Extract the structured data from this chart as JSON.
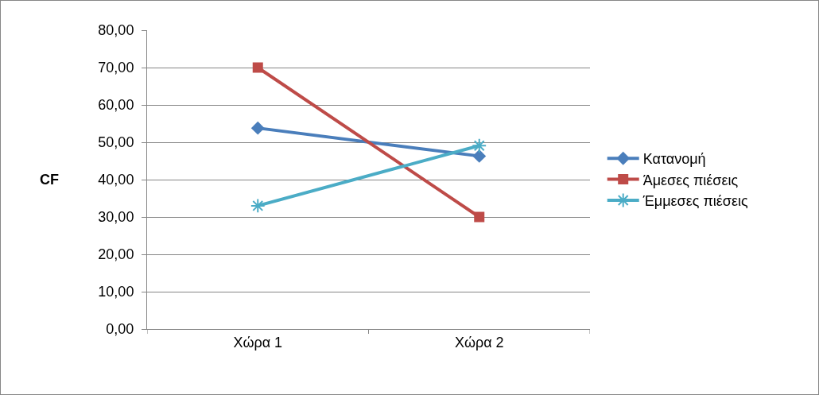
{
  "chart_data": {
    "type": "line",
    "ylabel": "CF",
    "categories": [
      "Χώρα 1",
      "Χώρα 2"
    ],
    "series": [
      {
        "name": "Κατανομή",
        "color": "#4a7ebb",
        "marker": "diamond",
        "values": [
          53.8,
          46.3
        ]
      },
      {
        "name": "Άμεσες πιέσεις",
        "color": "#be4b48",
        "marker": "square",
        "values": [
          70,
          30
        ]
      },
      {
        "name": "Έμμεσες πιέσεις",
        "color": "#4bacc6",
        "marker": "cross",
        "values": [
          33,
          49.1
        ]
      }
    ],
    "ylim": [
      0,
      80
    ],
    "yticks": [
      {
        "value": 0,
        "label": "0,00"
      },
      {
        "value": 10,
        "label": "10,00"
      },
      {
        "value": 20,
        "label": "20,00"
      },
      {
        "value": 30,
        "label": "30,00"
      },
      {
        "value": 40,
        "label": "40,00"
      },
      {
        "value": 50,
        "label": "50,00"
      },
      {
        "value": 60,
        "label": "60,00"
      },
      {
        "value": 70,
        "label": "70,00"
      },
      {
        "value": 80,
        "label": "80,00"
      }
    ],
    "grid": "y",
    "legend": "right",
    "line_style": "solid"
  }
}
